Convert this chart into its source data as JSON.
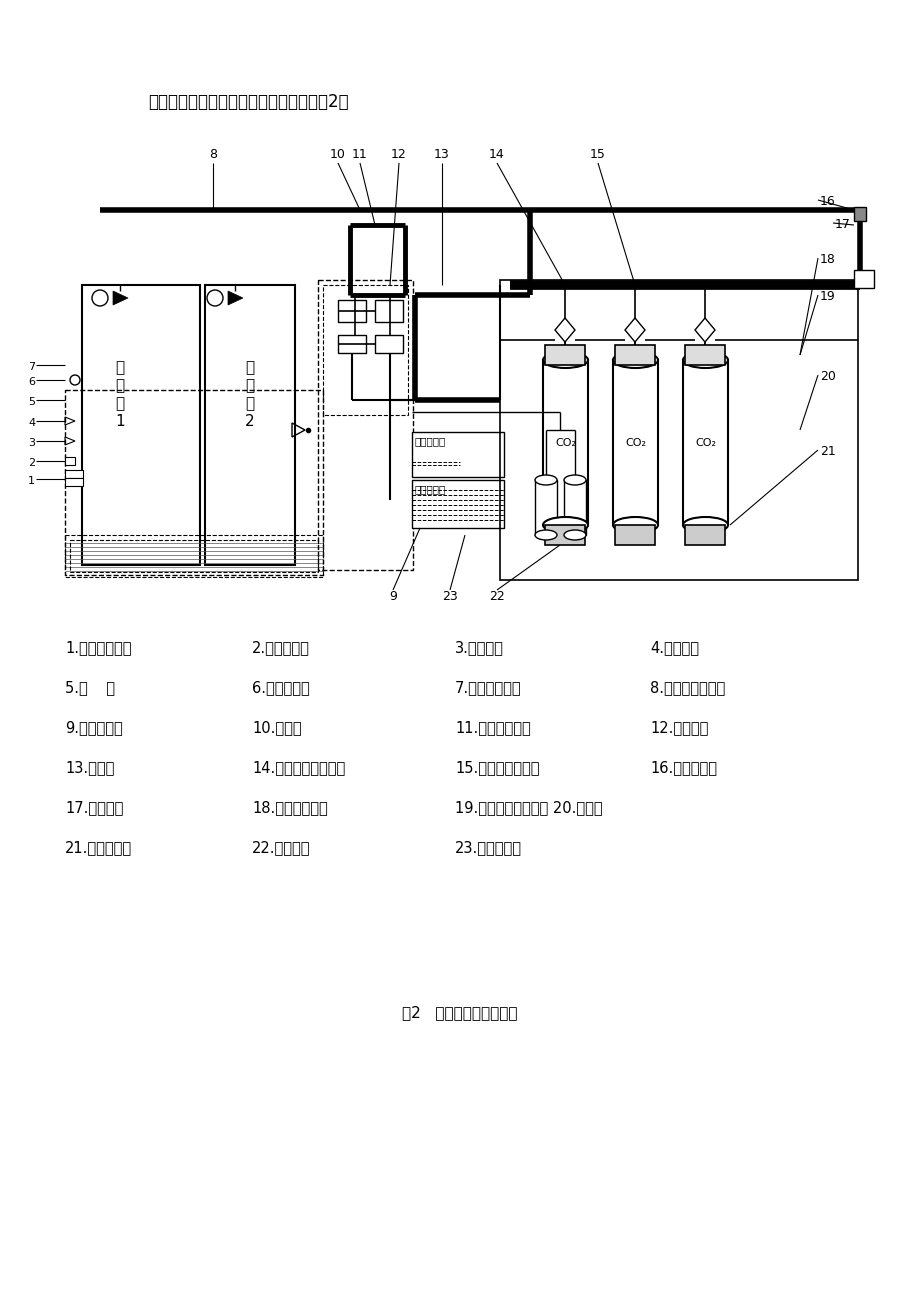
{
  "title": "组合分配系统主要部件及管网示意图见图2。",
  "figure_caption": "图2   组合分配系统示意图",
  "legend_items": [
    [
      "1.紧急启停按钮",
      "2.放气指示灯",
      "3.声报警器",
      "4.光报警器"
    ],
    [
      "5.喷    嘴",
      "6.火灾探测器",
      "7.电气控制线路",
      "8.灭火剂输送管道"
    ],
    [
      "9.灭火控制器",
      "10.选择阀",
      "11.信号反馈装置",
      "12.启动管路"
    ],
    [
      "13.集流管",
      "14.灭火剂管路单向阀",
      "15.启动管路单向阀",
      "16.安全泄压阀"
    ],
    [
      "17.压力软管",
      "18.灭火剂容器阀",
      "19.机械应急启动把手 20.瓶组架",
      ""
    ],
    [
      "21.灭火剂容器",
      "22.启动装置",
      "23.报警控制器",
      ""
    ]
  ],
  "bg_color": "#ffffff",
  "text_color": "#000000"
}
